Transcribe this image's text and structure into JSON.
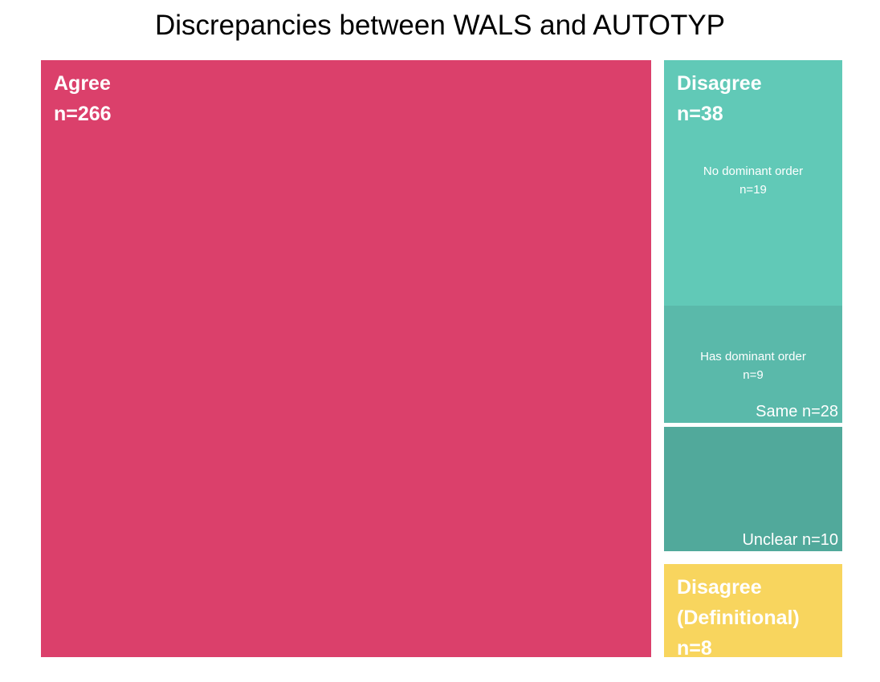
{
  "chart_data": {
    "type": "treemap",
    "title": "Discrepancies between WALS and AUTOTYP",
    "groups": [
      {
        "label": "Agree",
        "count_label": "n=266",
        "value": 266,
        "color": "#DB406B",
        "children": []
      },
      {
        "label": "Disagree",
        "count_label": "n=38",
        "value": 38,
        "color": "#5EC9B6",
        "children": [
          {
            "label": "Same n=28",
            "value": 28,
            "color": "#5AB9AA",
            "children": [
              {
                "label": "No dominant order",
                "count_label": "n=19",
                "value": 19,
                "color": "#61C9B7"
              },
              {
                "label": "Has dominant order",
                "count_label": "n=9",
                "value": 9,
                "color": "#5AB9AA"
              }
            ]
          },
          {
            "label": "Unclear n=10",
            "value": 10,
            "color": "#51A99B",
            "children": []
          }
        ]
      },
      {
        "label": "Disagree (Definitional)",
        "label_lines": [
          "Disagree",
          "(Definitional)"
        ],
        "count_label": "n=8",
        "value": 8,
        "color": "#F8D55E",
        "children": []
      }
    ]
  }
}
